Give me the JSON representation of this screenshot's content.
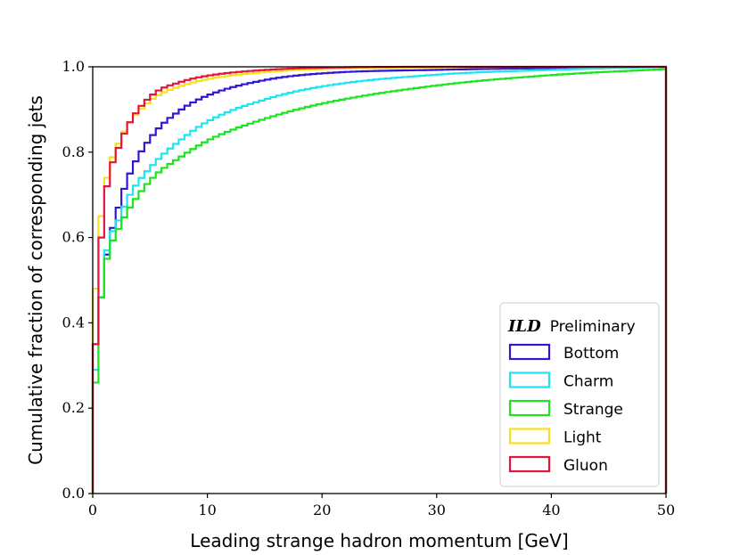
{
  "chart_data": {
    "type": "line",
    "step": true,
    "xlabel": "Leading strange hadron momentum [GeV]",
    "ylabel": "Cumulative fraction of corresponding jets",
    "xlim": [
      0,
      50
    ],
    "ylim": [
      0,
      1
    ],
    "xticks": [
      0,
      10,
      20,
      30,
      40,
      50
    ],
    "yticks": [
      0.0,
      0.2,
      0.4,
      0.6,
      0.8,
      1.0
    ],
    "xtick_labels": [
      "0",
      "10",
      "20",
      "30",
      "40",
      "50"
    ],
    "ytick_labels": [
      "0.0",
      "0.2",
      "0.4",
      "0.6",
      "0.8",
      "1.0"
    ],
    "grid": false,
    "legend_placement": "lower-right",
    "legend_title": {
      "ild": "ILD",
      "rest": "Preliminary"
    },
    "bin_width": 0.5,
    "x": [
      0,
      0.5,
      1,
      2,
      3,
      5,
      7.5,
      10,
      15,
      20,
      30,
      40,
      50
    ],
    "series": [
      {
        "name": "Bottom",
        "color": "#2e18d6",
        "values": [
          0.35,
          0.46,
          0.56,
          0.67,
          0.75,
          0.84,
          0.9,
          0.935,
          0.97,
          0.985,
          0.993,
          0.997,
          1.0
        ]
      },
      {
        "name": "Charm",
        "color": "#1ce5f2",
        "values": [
          0.29,
          0.46,
          0.57,
          0.64,
          0.7,
          0.77,
          0.83,
          0.875,
          0.925,
          0.955,
          0.982,
          0.993,
          1.0
        ]
      },
      {
        "name": "Strange",
        "color": "#1ce51f",
        "values": [
          0.26,
          0.46,
          0.55,
          0.62,
          0.67,
          0.74,
          0.79,
          0.83,
          0.88,
          0.915,
          0.957,
          0.981,
          0.995
        ]
      },
      {
        "name": "Light",
        "color": "#f7e01c",
        "values": [
          0.48,
          0.65,
          0.74,
          0.82,
          0.87,
          0.925,
          0.955,
          0.972,
          0.988,
          0.995,
          0.999,
          1.0,
          1.0
        ]
      },
      {
        "name": "Gluon",
        "color": "#e6143c",
        "values": [
          0.35,
          0.6,
          0.72,
          0.81,
          0.87,
          0.935,
          0.965,
          0.98,
          0.993,
          0.998,
          1.0,
          1.0,
          1.0
        ]
      }
    ]
  }
}
